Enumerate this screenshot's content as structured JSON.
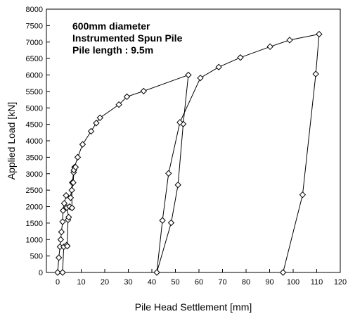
{
  "chart_data": {
    "type": "line",
    "annotations": [
      "600mm diameter",
      "Instrumented Spun Pile",
      "Pile length : 9.5m"
    ],
    "xlabel": "Pile Head Settlement [mm]",
    "ylabel": "Applied Load [kN]",
    "xlim": [
      0,
      120
    ],
    "ylim": [
      0,
      8000
    ],
    "xticks": [
      0,
      10,
      20,
      30,
      40,
      50,
      60,
      70,
      80,
      90,
      100,
      110,
      120
    ],
    "yticks": [
      0,
      500,
      1000,
      1500,
      2000,
      2500,
      3000,
      3500,
      4000,
      4500,
      5000,
      5500,
      6000,
      6500,
      7000,
      7500,
      8000
    ],
    "grid": false,
    "marker": "diamond",
    "series": [
      {
        "points": [
          [
            0,
            0
          ],
          [
            0.5,
            450
          ],
          [
            1,
            780
          ],
          [
            1.3,
            1000
          ],
          [
            1.6,
            1230
          ],
          [
            2.1,
            1540
          ],
          [
            2.3,
            1880
          ],
          [
            2.8,
            2100
          ],
          [
            3.6,
            2340
          ],
          [
            5.5,
            2270
          ],
          [
            6.2,
            2730
          ],
          [
            6.8,
            3040
          ],
          [
            7.2,
            3200
          ],
          [
            8.5,
            3500
          ],
          [
            10.6,
            3890
          ],
          [
            14.2,
            4290
          ],
          [
            16.4,
            4540
          ],
          [
            18,
            4700
          ],
          [
            26,
            5100
          ],
          [
            29.4,
            5340
          ],
          [
            36.5,
            5510
          ],
          [
            55.5,
            6000
          ],
          [
            53.3,
            4510
          ],
          [
            51.1,
            2660
          ],
          [
            48.2,
            1510
          ],
          [
            42.1,
            0
          ],
          [
            44.5,
            1580
          ],
          [
            47.1,
            3010
          ],
          [
            51.9,
            4560
          ],
          [
            60.6,
            5910
          ],
          [
            68.4,
            6240
          ],
          [
            77.6,
            6530
          ],
          [
            90.2,
            6860
          ],
          [
            98.5,
            7060
          ],
          [
            111,
            7240
          ],
          [
            109.6,
            6030
          ],
          [
            104,
            2360
          ],
          [
            95.7,
            0
          ]
        ]
      },
      {
        "points": [
          [
            2.1,
            0
          ],
          [
            2.6,
            780
          ],
          [
            3.8,
            830
          ],
          [
            4.1,
            800
          ],
          [
            4.4,
            1600
          ],
          [
            4.7,
            1680
          ],
          [
            3.9,
            1970
          ],
          [
            5.1,
            2000
          ],
          [
            6.1,
            1960
          ],
          [
            6,
            2500
          ],
          [
            6.6,
            2730
          ],
          [
            6.9,
            3110
          ],
          [
            7.6,
            3200
          ]
        ]
      }
    ]
  }
}
